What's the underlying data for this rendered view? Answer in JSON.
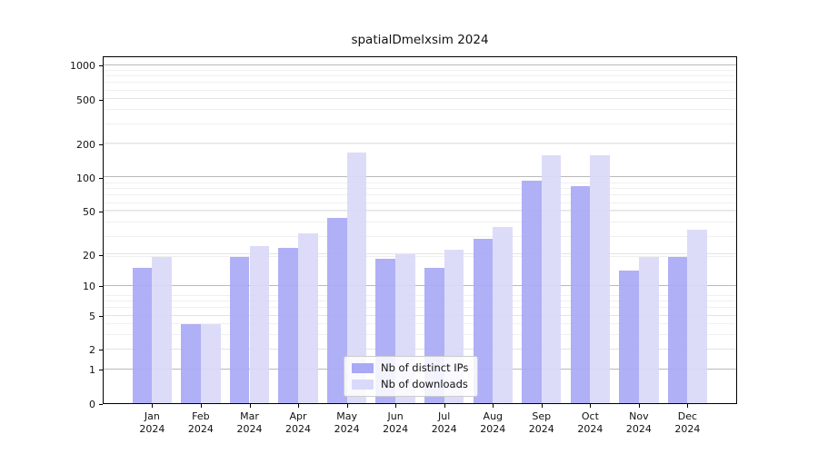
{
  "title": "spatialDmelxsim 2024",
  "chart_data": {
    "type": "bar",
    "title": "spatialDmelxsim 2024",
    "categories": [
      "Jan",
      "Feb",
      "Mar",
      "Apr",
      "May",
      "Jun",
      "Jul",
      "Aug",
      "Sep",
      "Oct",
      "Nov",
      "Dec"
    ],
    "year": "2024",
    "series": [
      {
        "name": "Nb of distinct IPs",
        "color": "#a9a9f5",
        "values": [
          15,
          4,
          19,
          23,
          43,
          18,
          15,
          28,
          93,
          83,
          14,
          19
        ]
      },
      {
        "name": "Nb of downloads",
        "color": "#d9d9f9",
        "values": [
          19,
          4,
          24,
          31,
          168,
          20,
          22,
          36,
          158,
          159,
          19,
          34
        ]
      }
    ],
    "xlabel": "",
    "ylabel": "",
    "yscale": "log10(value+1)",
    "yticks": [
      0,
      1,
      2,
      5,
      10,
      20,
      50,
      100,
      200,
      500,
      1000
    ],
    "ylim": [
      0,
      1202
    ],
    "grid": true,
    "legend_position": "lower center"
  }
}
